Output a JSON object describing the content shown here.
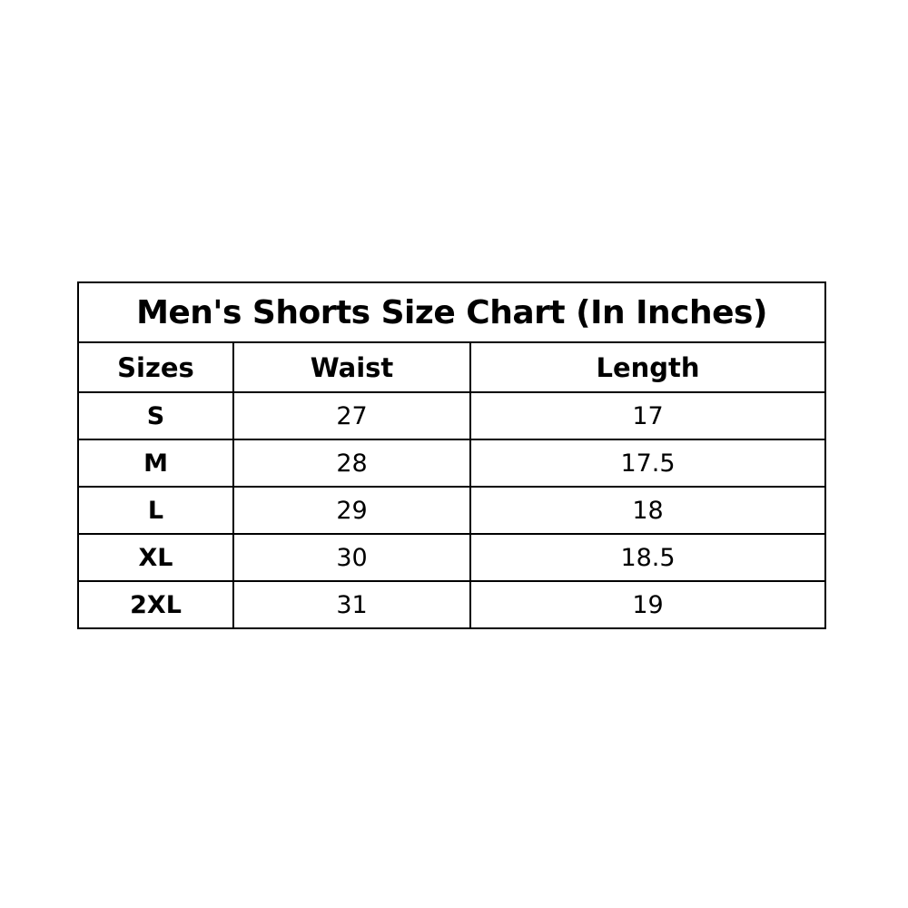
{
  "title": "Men's Shorts Size Chart (In Inches)",
  "columns": [
    "Sizes",
    "Waist",
    "Length"
  ],
  "rows": [
    [
      "S",
      "27",
      "17"
    ],
    [
      "M",
      "28",
      "17.5"
    ],
    [
      "L",
      "29",
      "18"
    ],
    [
      "XL",
      "30",
      "18.5"
    ],
    [
      "2XL",
      "31",
      "19"
    ]
  ]
}
